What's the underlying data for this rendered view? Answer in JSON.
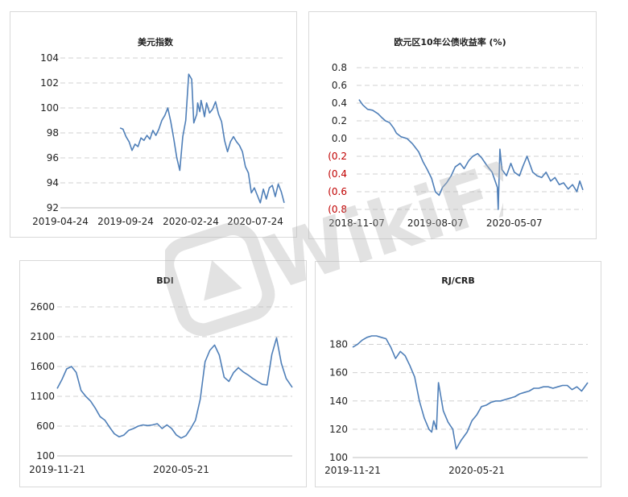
{
  "watermark": {
    "text": "WikiFX"
  },
  "chart_data": [
    {
      "id": "usd",
      "type": "line",
      "title": "美元指数",
      "xlabel": "",
      "ylabel": "",
      "x_tick_labels": [
        "2019-04-24",
        "2019-09-24",
        "2020-02-24",
        "2020-07-24"
      ],
      "x_tick_dates": [
        "2019-04-24",
        "2019-09-24",
        "2020-02-24",
        "2020-07-24"
      ],
      "x_range": [
        "2019-04-24",
        "2020-09-30"
      ],
      "y_tick_labels": [
        "92",
        "94",
        "96",
        "98",
        "100",
        "102",
        "104"
      ],
      "y_ticks": [
        92,
        94,
        96,
        98,
        100,
        102,
        104
      ],
      "ylim": [
        92,
        104
      ],
      "grid": true,
      "series": [
        {
          "color": "#4f7fb8",
          "x": [
            "2019-09-11",
            "2019-09-18",
            "2019-09-25",
            "2019-10-02",
            "2019-10-09",
            "2019-10-16",
            "2019-10-23",
            "2019-10-30",
            "2019-11-06",
            "2019-11-13",
            "2019-11-20",
            "2019-11-27",
            "2019-12-04",
            "2019-12-11",
            "2019-12-18",
            "2019-12-25",
            "2020-01-01",
            "2020-01-08",
            "2020-01-15",
            "2020-01-22",
            "2020-01-29",
            "2020-02-05",
            "2020-02-12",
            "2020-02-19",
            "2020-02-26",
            "2020-03-02",
            "2020-03-09",
            "2020-03-11",
            "2020-03-16",
            "2020-03-19",
            "2020-03-23",
            "2020-03-27",
            "2020-04-01",
            "2020-04-08",
            "2020-04-15",
            "2020-04-22",
            "2020-04-29",
            "2020-05-06",
            "2020-05-13",
            "2020-05-20",
            "2020-05-27",
            "2020-06-03",
            "2020-06-10",
            "2020-06-17",
            "2020-06-24",
            "2020-07-01",
            "2020-07-08",
            "2020-07-15",
            "2020-07-22",
            "2020-07-29",
            "2020-08-05",
            "2020-08-12",
            "2020-08-19",
            "2020-08-26",
            "2020-09-02",
            "2020-09-09",
            "2020-09-16",
            "2020-09-23",
            "2020-09-30"
          ],
          "values": [
            98.4,
            98.3,
            97.7,
            97.3,
            96.6,
            97.1,
            96.9,
            97.6,
            97.4,
            97.8,
            97.5,
            98.2,
            97.8,
            98.3,
            99.0,
            99.4,
            100.0,
            98.9,
            97.5,
            96.0,
            95.0,
            97.7,
            99.0,
            102.7,
            102.3,
            98.8,
            99.5,
            100.4,
            99.7,
            100.6,
            100.0,
            99.3,
            100.4,
            99.6,
            99.9,
            100.5,
            99.5,
            98.9,
            97.4,
            96.5,
            97.3,
            97.7,
            97.3,
            97.0,
            96.5,
            95.3,
            94.8,
            93.2,
            93.6,
            93.0,
            92.4,
            93.5,
            92.7,
            93.6,
            93.8,
            92.9,
            93.9,
            93.3,
            92.4
          ]
        }
      ]
    },
    {
      "id": "eur10y",
      "type": "line",
      "title": "欧元区10年公债收益率 (%)",
      "xlabel": "",
      "ylabel": "",
      "x_tick_labels": [
        "2018-11-07",
        "2019-08-07",
        "2020-05-07"
      ],
      "x_tick_dates": [
        "2018-11-07",
        "2019-08-07",
        "2020-05-07"
      ],
      "x_range": [
        "2018-11-07",
        "2020-12-31"
      ],
      "y_tick_labels": [
        "0.8",
        "0.6",
        "0.4",
        "0.2",
        "0.0",
        "(0.2",
        "(0.4",
        "(0.6",
        "(0.8"
      ],
      "y_ticks": [
        0.8,
        0.6,
        0.4,
        0.2,
        0.0,
        -0.2,
        -0.4,
        -0.6,
        -0.8
      ],
      "ylim": [
        -0.8,
        0.8
      ],
      "negative_tick_color": "#c00000",
      "grid": true,
      "series": [
        {
          "color": "#4f7fb8",
          "x": [
            "2018-11-15",
            "2018-11-28",
            "2018-12-15",
            "2019-01-01",
            "2019-01-20",
            "2019-02-01",
            "2019-02-15",
            "2019-03-01",
            "2019-03-15",
            "2019-03-25",
            "2019-04-10",
            "2019-05-01",
            "2019-05-20",
            "2019-06-10",
            "2019-06-25",
            "2019-07-10",
            "2019-07-25",
            "2019-08-07",
            "2019-08-20",
            "2019-09-01",
            "2019-09-15",
            "2019-10-01",
            "2019-10-15",
            "2019-11-01",
            "2019-11-15",
            "2019-12-01",
            "2019-12-15",
            "2020-01-01",
            "2020-01-15",
            "2020-02-01",
            "2020-02-20",
            "2020-03-09",
            "2020-03-12",
            "2020-03-18",
            "2020-03-25",
            "2020-04-10",
            "2020-04-25",
            "2020-05-07",
            "2020-05-25",
            "2020-06-05",
            "2020-06-20",
            "2020-07-10",
            "2020-07-25",
            "2020-08-10",
            "2020-08-25",
            "2020-09-10",
            "2020-09-25",
            "2020-10-10",
            "2020-10-25",
            "2020-11-10",
            "2020-11-25",
            "2020-12-10",
            "2020-12-20",
            "2020-12-31"
          ],
          "values": [
            0.44,
            0.38,
            0.33,
            0.32,
            0.28,
            0.24,
            0.2,
            0.18,
            0.12,
            0.06,
            0.02,
            0.0,
            -0.06,
            -0.15,
            -0.26,
            -0.35,
            -0.45,
            -0.6,
            -0.64,
            -0.55,
            -0.5,
            -0.42,
            -0.32,
            -0.28,
            -0.34,
            -0.25,
            -0.2,
            -0.17,
            -0.22,
            -0.3,
            -0.38,
            -0.55,
            -0.8,
            -0.12,
            -0.35,
            -0.42,
            -0.28,
            -0.38,
            -0.42,
            -0.32,
            -0.2,
            -0.38,
            -0.42,
            -0.44,
            -0.38,
            -0.48,
            -0.44,
            -0.52,
            -0.5,
            -0.57,
            -0.52,
            -0.6,
            -0.48,
            -0.58
          ]
        }
      ]
    },
    {
      "id": "bdi",
      "type": "line",
      "title": "BDI",
      "xlabel": "",
      "ylabel": "",
      "x_tick_labels": [
        "2019-11-21",
        "2020-05-21"
      ],
      "x_tick_dates": [
        "2019-11-21",
        "2020-05-21"
      ],
      "x_range": [
        "2019-11-21",
        "2020-10-31"
      ],
      "y_tick_labels": [
        "100",
        "600",
        "1100",
        "1600",
        "2100",
        "2600"
      ],
      "y_ticks": [
        100,
        600,
        1100,
        1600,
        2100,
        2600
      ],
      "ylim": [
        100,
        2600
      ],
      "grid": true,
      "series": [
        {
          "color": "#4f7fb8",
          "x": [
            "2019-11-21",
            "2019-11-28",
            "2019-12-05",
            "2019-12-12",
            "2019-12-19",
            "2019-12-26",
            "2020-01-02",
            "2020-01-09",
            "2020-01-16",
            "2020-01-23",
            "2020-01-30",
            "2020-02-06",
            "2020-02-13",
            "2020-02-20",
            "2020-02-27",
            "2020-03-05",
            "2020-03-12",
            "2020-03-19",
            "2020-03-26",
            "2020-04-02",
            "2020-04-09",
            "2020-04-16",
            "2020-04-23",
            "2020-04-30",
            "2020-05-07",
            "2020-05-14",
            "2020-05-21",
            "2020-05-28",
            "2020-06-04",
            "2020-06-11",
            "2020-06-18",
            "2020-06-25",
            "2020-07-02",
            "2020-07-09",
            "2020-07-16",
            "2020-07-23",
            "2020-07-30",
            "2020-08-06",
            "2020-08-13",
            "2020-08-20",
            "2020-08-27",
            "2020-09-03",
            "2020-09-10",
            "2020-09-17",
            "2020-09-24",
            "2020-10-01",
            "2020-10-08",
            "2020-10-15",
            "2020-10-22",
            "2020-10-31"
          ],
          "values": [
            1230,
            1380,
            1560,
            1600,
            1500,
            1200,
            1100,
            1020,
            900,
            760,
            700,
            580,
            470,
            420,
            450,
            530,
            560,
            600,
            620,
            610,
            620,
            640,
            560,
            620,
            560,
            450,
            400,
            440,
            560,
            700,
            1050,
            1680,
            1870,
            1960,
            1790,
            1420,
            1350,
            1500,
            1580,
            1510,
            1460,
            1400,
            1350,
            1300,
            1290,
            1800,
            2080,
            1650,
            1400,
            1250
          ]
        }
      ]
    },
    {
      "id": "rjcrb",
      "type": "line",
      "title": "RJ/CRB",
      "xlabel": "",
      "ylabel": "",
      "x_tick_labels": [
        "2019-11-21",
        "2020-05-21"
      ],
      "x_tick_dates": [
        "2019-11-21",
        "2020-05-21"
      ],
      "x_range": [
        "2019-11-21",
        "2020-10-31"
      ],
      "y_tick_labels": [
        "100",
        "120",
        "140",
        "160",
        "180"
      ],
      "y_ticks": [
        100,
        120,
        140,
        160,
        180
      ],
      "ylim": [
        100,
        190
      ],
      "grid": true,
      "series": [
        {
          "color": "#4f7fb8",
          "x": [
            "2019-11-21",
            "2019-11-28",
            "2019-12-05",
            "2019-12-12",
            "2019-12-19",
            "2019-12-26",
            "2020-01-02",
            "2020-01-09",
            "2020-01-16",
            "2020-01-23",
            "2020-01-30",
            "2020-02-06",
            "2020-02-13",
            "2020-02-20",
            "2020-02-27",
            "2020-03-05",
            "2020-03-12",
            "2020-03-16",
            "2020-03-19",
            "2020-03-23",
            "2020-03-26",
            "2020-04-02",
            "2020-04-09",
            "2020-04-16",
            "2020-04-21",
            "2020-04-28",
            "2020-05-07",
            "2020-05-14",
            "2020-05-21",
            "2020-05-28",
            "2020-06-04",
            "2020-06-11",
            "2020-06-18",
            "2020-06-25",
            "2020-07-02",
            "2020-07-09",
            "2020-07-16",
            "2020-07-23",
            "2020-07-30",
            "2020-08-06",
            "2020-08-13",
            "2020-08-20",
            "2020-08-27",
            "2020-09-03",
            "2020-09-10",
            "2020-09-17",
            "2020-09-24",
            "2020-10-01",
            "2020-10-08",
            "2020-10-15",
            "2020-10-22",
            "2020-10-31"
          ],
          "values": [
            178,
            180,
            183,
            185,
            186,
            186,
            185,
            184,
            178,
            170,
            175,
            172,
            165,
            157,
            140,
            128,
            120,
            118,
            126,
            120,
            153,
            133,
            125,
            120,
            106,
            112,
            118,
            126,
            130,
            136,
            137,
            139,
            140,
            140,
            141,
            142,
            143,
            145,
            146,
            147,
            149,
            149,
            150,
            150,
            149,
            150,
            151,
            151,
            148,
            150,
            147,
            153
          ]
        }
      ]
    }
  ]
}
